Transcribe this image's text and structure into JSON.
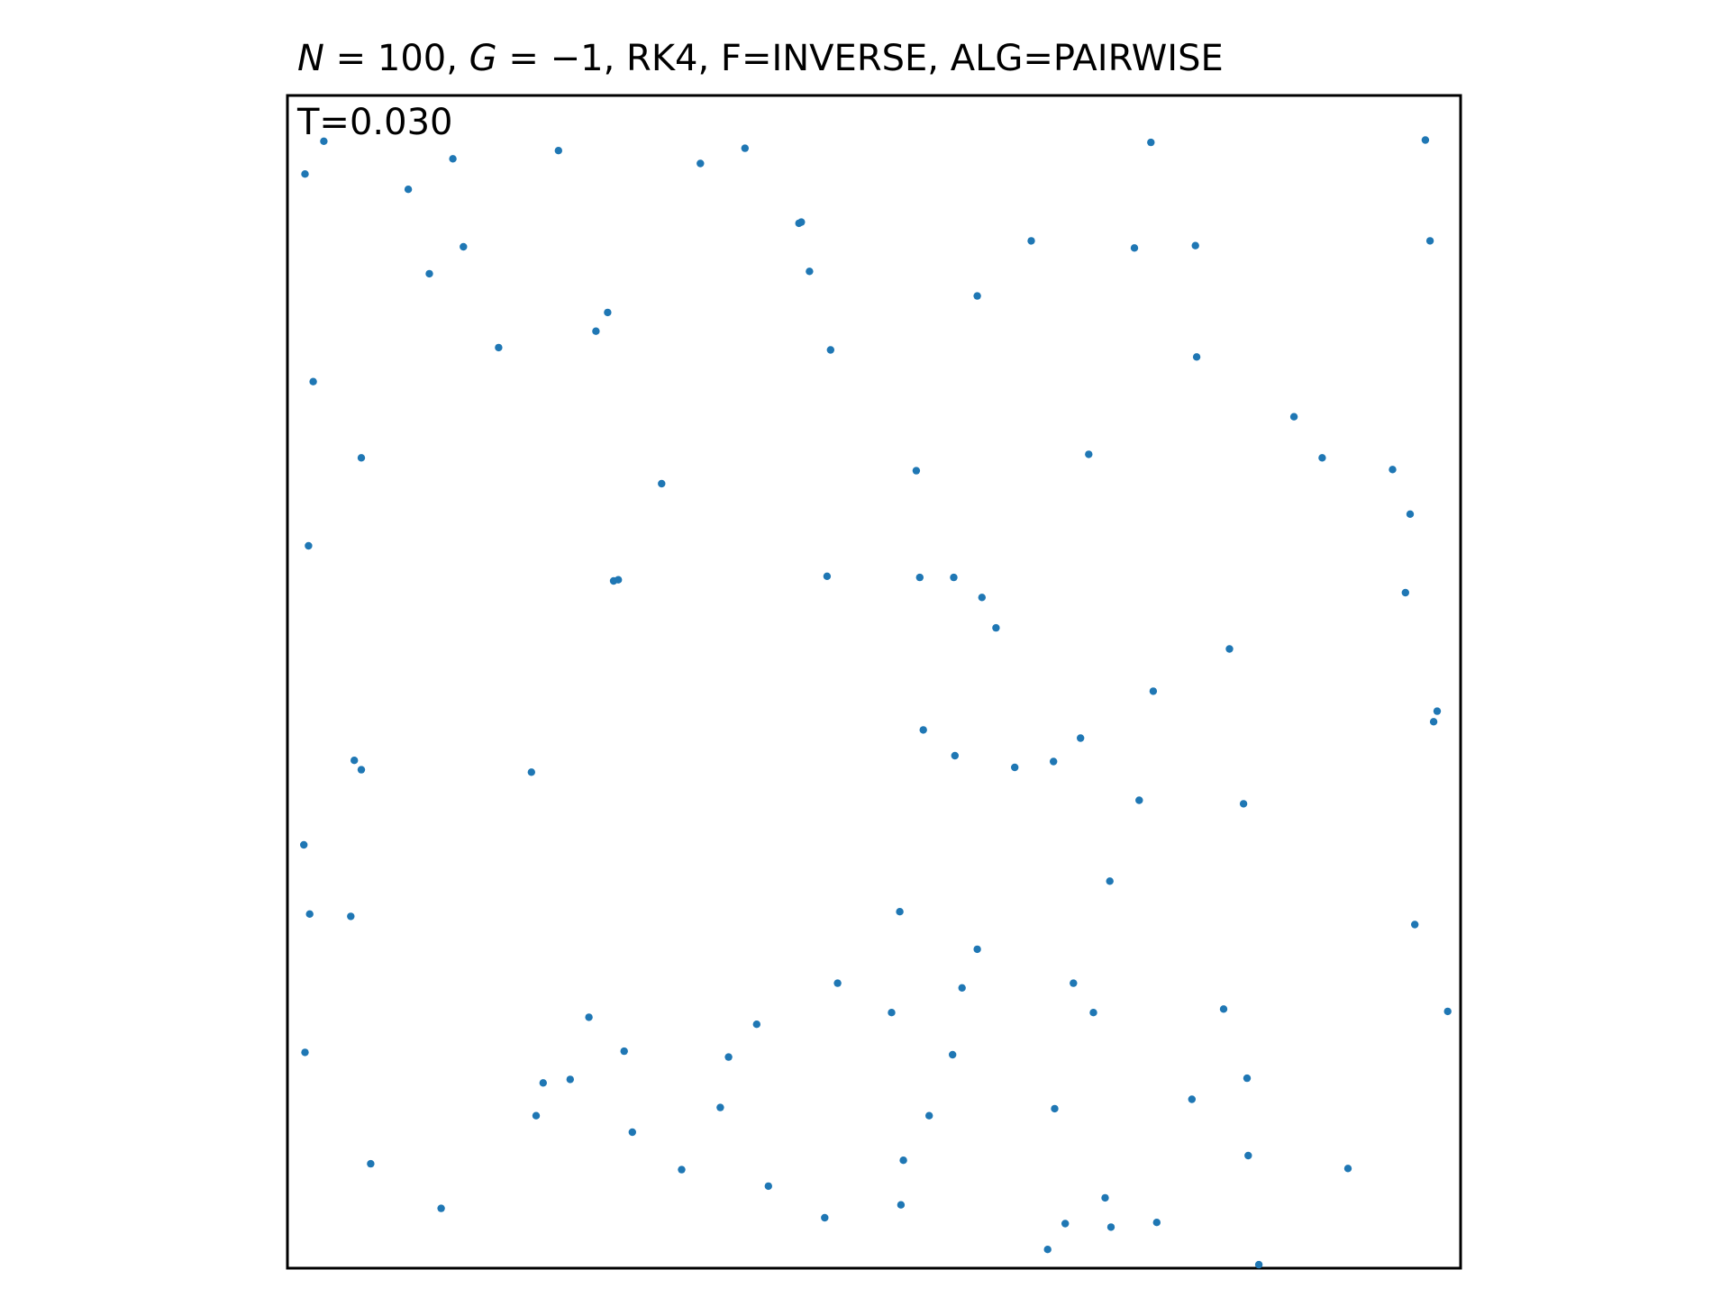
{
  "title": {
    "N_symbol": "N",
    "N_value": "100",
    "G_symbol": "G",
    "G_value": "−1",
    "rest": "RK4, F=INVERSE, ALG=PAIRWISE"
  },
  "time_label": "T=0.030",
  "colors": {
    "points": "#1f77b4",
    "frame": "#000000",
    "background": "#ffffff"
  },
  "chart_data": {
    "type": "scatter",
    "title": "N = 100, G = −1, RK4, F=INVERSE, ALG=PAIRWISE",
    "annotation": "T=0.030",
    "xlim": [
      0,
      1
    ],
    "ylim": [
      0,
      1
    ],
    "axes_visible": false,
    "grid": false,
    "series": [
      {
        "points": [
          [
            0.031,
            0.961
          ],
          [
            0.015,
            0.933
          ],
          [
            0.141,
            0.946
          ],
          [
            0.103,
            0.92
          ],
          [
            0.231,
            0.953
          ],
          [
            0.352,
            0.942
          ],
          [
            0.39,
            0.955
          ],
          [
            0.736,
            0.96
          ],
          [
            0.97,
            0.962
          ],
          [
            0.15,
            0.871
          ],
          [
            0.121,
            0.848
          ],
          [
            0.436,
            0.891
          ],
          [
            0.438,
            0.892
          ],
          [
            0.445,
            0.85
          ],
          [
            0.634,
            0.876
          ],
          [
            0.722,
            0.87
          ],
          [
            0.774,
            0.872
          ],
          [
            0.974,
            0.876
          ],
          [
            0.588,
            0.829
          ],
          [
            0.18,
            0.785
          ],
          [
            0.022,
            0.756
          ],
          [
            0.263,
            0.799
          ],
          [
            0.273,
            0.815
          ],
          [
            0.463,
            0.783
          ],
          [
            0.775,
            0.777
          ],
          [
            0.858,
            0.726
          ],
          [
            0.882,
            0.691
          ],
          [
            0.942,
            0.681
          ],
          [
            0.063,
            0.691
          ],
          [
            0.319,
            0.669
          ],
          [
            0.536,
            0.68
          ],
          [
            0.683,
            0.694
          ],
          [
            0.957,
            0.643
          ],
          [
            0.018,
            0.616
          ],
          [
            0.278,
            0.586
          ],
          [
            0.282,
            0.587
          ],
          [
            0.46,
            0.59
          ],
          [
            0.539,
            0.589
          ],
          [
            0.568,
            0.589
          ],
          [
            0.592,
            0.572
          ],
          [
            0.604,
            0.546
          ],
          [
            0.803,
            0.528
          ],
          [
            0.953,
            0.576
          ],
          [
            0.738,
            0.492
          ],
          [
            0.98,
            0.475
          ],
          [
            0.977,
            0.466
          ],
          [
            0.542,
            0.459
          ],
          [
            0.569,
            0.437
          ],
          [
            0.62,
            0.427
          ],
          [
            0.653,
            0.432
          ],
          [
            0.676,
            0.452
          ],
          [
            0.726,
            0.399
          ],
          [
            0.057,
            0.433
          ],
          [
            0.063,
            0.425
          ],
          [
            0.208,
            0.423
          ],
          [
            0.815,
            0.396
          ],
          [
            0.014,
            0.361
          ],
          [
            0.019,
            0.302
          ],
          [
            0.054,
            0.3
          ],
          [
            0.701,
            0.33
          ],
          [
            0.522,
            0.304
          ],
          [
            0.588,
            0.272
          ],
          [
            0.961,
            0.293
          ],
          [
            0.469,
            0.243
          ],
          [
            0.515,
            0.218
          ],
          [
            0.575,
            0.239
          ],
          [
            0.67,
            0.243
          ],
          [
            0.687,
            0.218
          ],
          [
            0.798,
            0.221
          ],
          [
            0.989,
            0.219
          ],
          [
            0.257,
            0.214
          ],
          [
            0.4,
            0.208
          ],
          [
            0.015,
            0.184
          ],
          [
            0.287,
            0.185
          ],
          [
            0.376,
            0.18
          ],
          [
            0.567,
            0.182
          ],
          [
            0.218,
            0.158
          ],
          [
            0.241,
            0.161
          ],
          [
            0.212,
            0.13
          ],
          [
            0.369,
            0.137
          ],
          [
            0.547,
            0.13
          ],
          [
            0.654,
            0.136
          ],
          [
            0.771,
            0.144
          ],
          [
            0.818,
            0.162
          ],
          [
            0.294,
            0.116
          ],
          [
            0.525,
            0.092
          ],
          [
            0.819,
            0.096
          ],
          [
            0.904,
            0.085
          ],
          [
            0.071,
            0.089
          ],
          [
            0.336,
            0.084
          ],
          [
            0.41,
            0.07
          ],
          [
            0.523,
            0.054
          ],
          [
            0.131,
            0.051
          ],
          [
            0.458,
            0.043
          ],
          [
            0.697,
            0.06
          ],
          [
            0.648,
            0.016
          ],
          [
            0.663,
            0.038
          ],
          [
            0.702,
            0.035
          ],
          [
            0.741,
            0.039
          ],
          [
            0.828,
            0.003
          ]
        ]
      }
    ]
  }
}
